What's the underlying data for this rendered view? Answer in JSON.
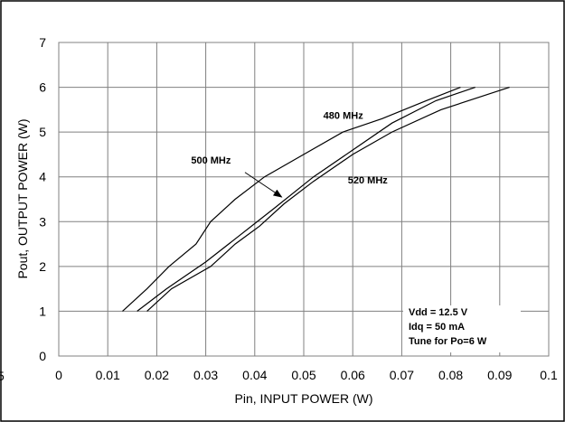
{
  "chart_data": {
    "type": "line",
    "title": "",
    "xlabel": "Pin, INPUT POWER (W)",
    "ylabel": "Pout, OUTPUT POWER (W)",
    "xlim": [
      0,
      0.1
    ],
    "ylim": [
      0,
      7
    ],
    "xticks": [
      "0",
      "0.01",
      "0.02",
      "0.03",
      "0.04",
      "0.05",
      "0.06",
      "0.07",
      "0.08",
      "0.09",
      "0.1"
    ],
    "yticks": [
      "0",
      "1",
      "2",
      "3",
      "4",
      "5",
      "6",
      "7"
    ],
    "grid": true,
    "series": [
      {
        "name": "480 MHz",
        "x": [
          0.013,
          0.018,
          0.0225,
          0.028,
          0.031,
          0.036,
          0.042,
          0.05,
          0.058,
          0.066,
          0.075,
          0.082
        ],
        "y": [
          1,
          1.5,
          2,
          2.5,
          3,
          3.5,
          4,
          4.5,
          5,
          5.3,
          5.7,
          6
        ]
      },
      {
        "name": "500 MHz",
        "x": [
          0.016,
          0.022,
          0.03,
          0.037,
          0.044,
          0.052,
          0.06,
          0.068,
          0.077,
          0.085
        ],
        "y": [
          1,
          1.5,
          2.1,
          2.7,
          3.3,
          4,
          4.6,
          5.2,
          5.7,
          6
        ]
      },
      {
        "name": "520 MHz",
        "x": [
          0.018,
          0.023,
          0.031,
          0.036,
          0.041,
          0.046,
          0.052,
          0.06,
          0.068,
          0.078,
          0.092
        ],
        "y": [
          1,
          1.5,
          2,
          2.5,
          2.9,
          3.4,
          3.9,
          4.5,
          5,
          5.5,
          6
        ]
      }
    ],
    "annotations": [
      {
        "text": "480 MHz",
        "x": 0.054,
        "y": 5.3
      },
      {
        "text": "500 MHz",
        "x": 0.027,
        "y": 4.3
      },
      {
        "text": "520 MHz",
        "x": 0.059,
        "y": 3.85
      }
    ],
    "arrow": {
      "from": [
        0.038,
        4.1
      ],
      "to": [
        0.0455,
        3.55
      ]
    },
    "conditions": [
      "Vdd = 12.5 V",
      "Idq = 50 mA",
      "Tune for Po=6 W"
    ],
    "side_mark": "5"
  }
}
